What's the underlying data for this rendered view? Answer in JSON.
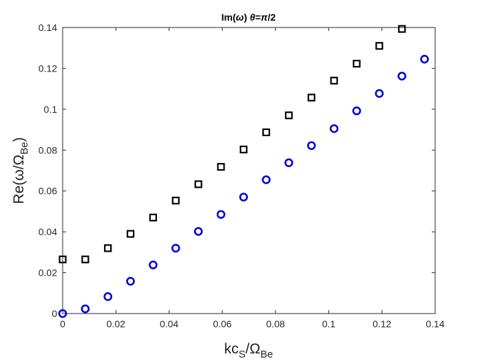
{
  "chart_data": {
    "type": "scatter",
    "title_prefix": "Im(",
    "title_omega": "ω",
    "title_mid": ") ",
    "title_theta": "θ",
    "title_suffix": "=",
    "title_pi": "π",
    "title_end": "/2",
    "xlabel_main": "kc",
    "xlabel_sub": "S",
    "xlabel_slash": "/Ω",
    "xlabel_sub2": "Be",
    "ylabel_main": "Re(ω/Ω",
    "ylabel_sub": "Be",
    "ylabel_end": ")",
    "xlim": [
      0,
      0.14
    ],
    "ylim": [
      0,
      0.14
    ],
    "x_ticks": [
      0,
      0.02,
      0.04,
      0.06,
      0.08,
      0.1,
      0.12,
      0.14
    ],
    "x_tick_labels": [
      "0",
      "0.02",
      "0.04",
      "0.06",
      "0.08",
      "0.1",
      "0.12",
      "0.14"
    ],
    "y_ticks": [
      0,
      0.02,
      0.04,
      0.06,
      0.08,
      0.1,
      0.12,
      0.14
    ],
    "y_tick_labels": [
      "0",
      "0.02",
      "0.04",
      "0.06",
      "0.08",
      "0.1",
      "0.12",
      "0.14"
    ],
    "grid": false,
    "series": [
      {
        "marker": "square",
        "color": "#000000",
        "x": [
          0,
          0.0085,
          0.017,
          0.0255,
          0.034,
          0.0425,
          0.051,
          0.0595,
          0.068,
          0.0765,
          0.085,
          0.0935,
          0.102,
          0.1105,
          0.119,
          0.1275
        ],
        "y": [
          0.0265,
          0.0265,
          0.032,
          0.039,
          0.047,
          0.0553,
          0.0633,
          0.0718,
          0.0803,
          0.0887,
          0.097,
          0.1057,
          0.114,
          0.1223,
          0.131,
          0.1393
        ]
      },
      {
        "marker": "circle",
        "color": "#0000dd",
        "x": [
          0,
          0.0085,
          0.017,
          0.0255,
          0.034,
          0.0425,
          0.051,
          0.0595,
          0.068,
          0.0765,
          0.085,
          0.0935,
          0.102,
          0.1105,
          0.119,
          0.1275,
          0.136
        ],
        "y": [
          0.0,
          0.0023,
          0.0083,
          0.0158,
          0.0238,
          0.032,
          0.0402,
          0.0485,
          0.057,
          0.0655,
          0.0738,
          0.0822,
          0.0905,
          0.0992,
          0.1077,
          0.1162,
          0.1245
        ]
      }
    ]
  }
}
